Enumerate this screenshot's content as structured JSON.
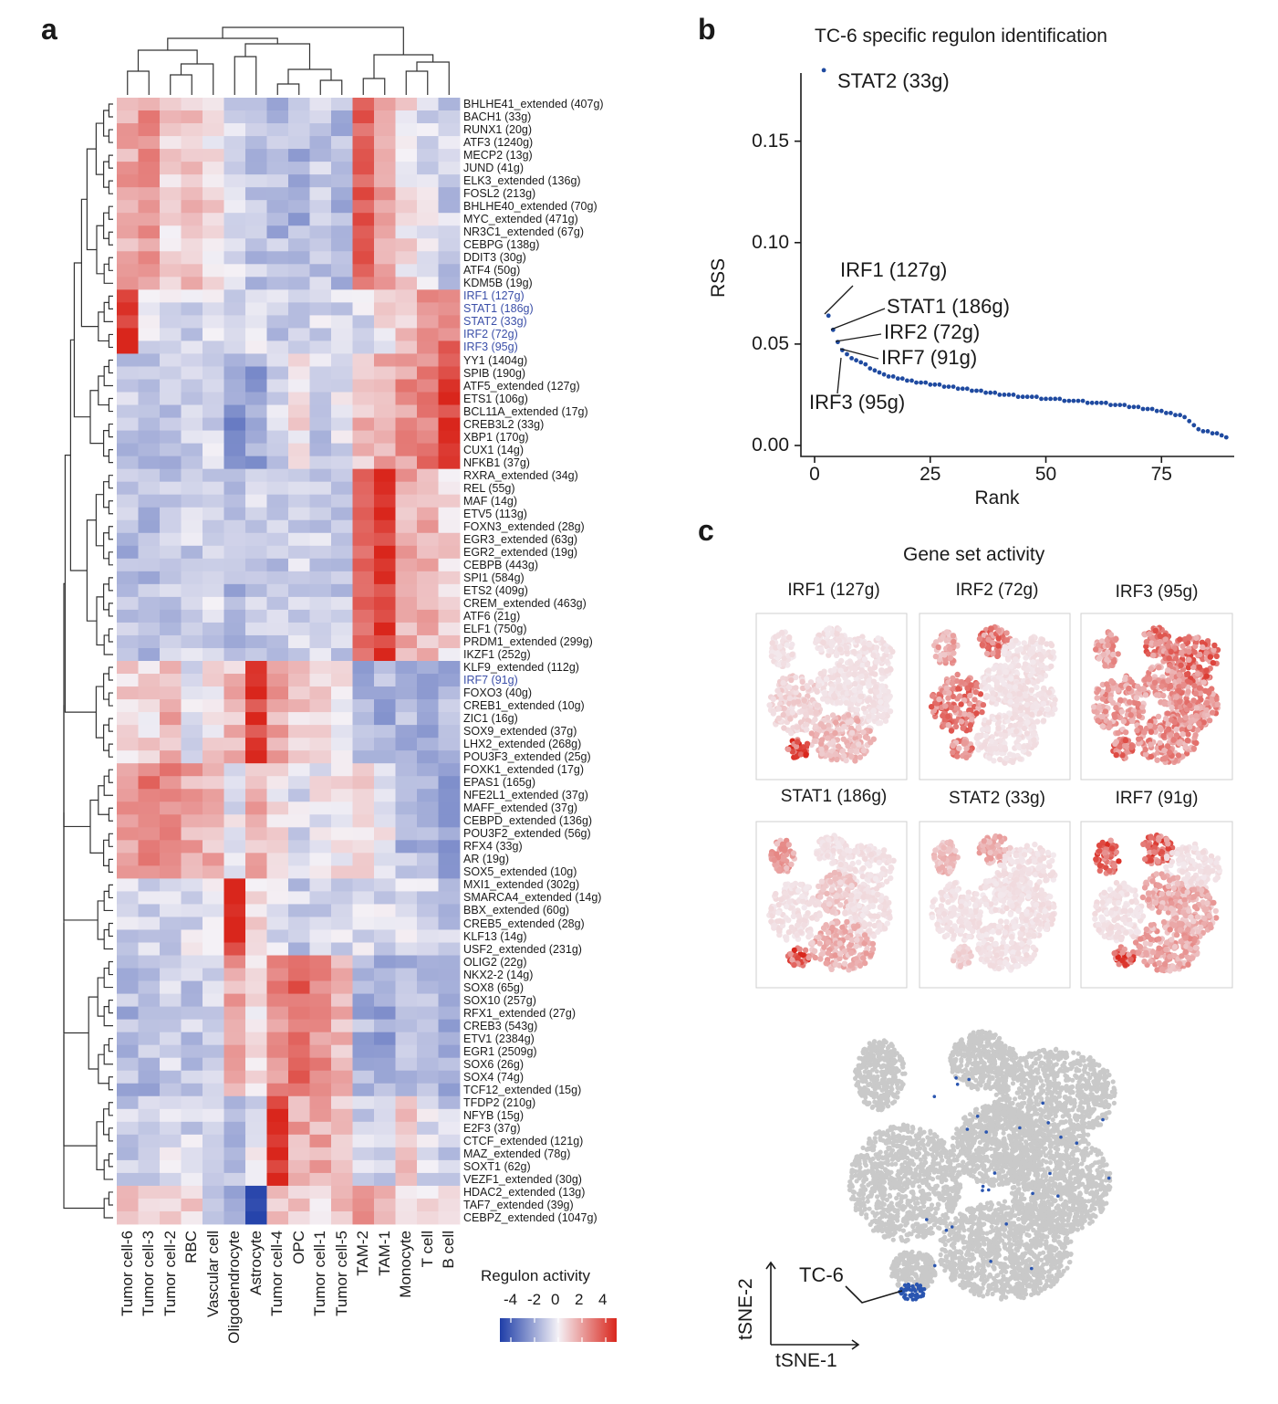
{
  "panels": {
    "a": "a",
    "b": "b",
    "c": "c"
  },
  "heatmap": {
    "columns": [
      "Tumor cell-6",
      "Tumor cell-3",
      "Tumor cell-2",
      "RBC",
      "Vascular cell",
      "Oligodendrocyte",
      "Astrocyte",
      "Tumor cell-4",
      "OPC",
      "Tumor cell-1",
      "Tumor cell-5",
      "TAM-2",
      "TAM-1",
      "Monocyte",
      "T cell",
      "B cell"
    ],
    "rows": [
      {
        "label": "BHLHE41_extended (407g)",
        "hl": false
      },
      {
        "label": "BACH1 (33g)",
        "hl": false
      },
      {
        "label": "RUNX1 (20g)",
        "hl": false
      },
      {
        "label": "ATF3 (1240g)",
        "hl": false
      },
      {
        "label": "MECP2 (13g)",
        "hl": false
      },
      {
        "label": "JUND (41g)",
        "hl": false
      },
      {
        "label": "ELK3_extended (136g)",
        "hl": false
      },
      {
        "label": "FOSL2 (213g)",
        "hl": false
      },
      {
        "label": "BHLHE40_extended (70g)",
        "hl": false
      },
      {
        "label": "MYC_extended (471g)",
        "hl": false
      },
      {
        "label": "NR3C1_extended (67g)",
        "hl": false
      },
      {
        "label": "CEBPG (138g)",
        "hl": false
      },
      {
        "label": "DDIT3 (30g)",
        "hl": false
      },
      {
        "label": "ATF4 (50g)",
        "hl": false
      },
      {
        "label": "KDM5B (19g)",
        "hl": false
      },
      {
        "label": "IRF1 (127g)",
        "hl": true
      },
      {
        "label": "STAT1 (186g)",
        "hl": true
      },
      {
        "label": "STAT2 (33g)",
        "hl": true
      },
      {
        "label": "IRF2 (72g)",
        "hl": true
      },
      {
        "label": "IRF3 (95g)",
        "hl": true
      },
      {
        "label": "YY1 (1404g)",
        "hl": false
      },
      {
        "label": "SPIB (190g)",
        "hl": false
      },
      {
        "label": "ATF5_extended (127g)",
        "hl": false
      },
      {
        "label": "ETS1 (106g)",
        "hl": false
      },
      {
        "label": "BCL11A_extended (17g)",
        "hl": false
      },
      {
        "label": "CREB3L2 (33g)",
        "hl": false
      },
      {
        "label": "XBP1 (170g)",
        "hl": false
      },
      {
        "label": "CUX1 (14g)",
        "hl": false
      },
      {
        "label": "NFKB1 (37g)",
        "hl": false
      },
      {
        "label": "RXRA_extended (34g)",
        "hl": false
      },
      {
        "label": "REL (55g)",
        "hl": false
      },
      {
        "label": "MAF (14g)",
        "hl": false
      },
      {
        "label": "ETV5 (113g)",
        "hl": false
      },
      {
        "label": "FOXN3_extended (28g)",
        "hl": false
      },
      {
        "label": "EGR3_extended (63g)",
        "hl": false
      },
      {
        "label": "EGR2_extended (19g)",
        "hl": false
      },
      {
        "label": "CEBPB (443g)",
        "hl": false
      },
      {
        "label": "SPI1 (584g)",
        "hl": false
      },
      {
        "label": "ETS2 (409g)",
        "hl": false
      },
      {
        "label": "CREM_extended (463g)",
        "hl": false
      },
      {
        "label": "ATF6 (21g)",
        "hl": false
      },
      {
        "label": "ELF1 (750g)",
        "hl": false
      },
      {
        "label": "PRDM1_extended (299g)",
        "hl": false
      },
      {
        "label": "IKZF1 (252g)",
        "hl": false
      },
      {
        "label": "KLF9_extended (112g)",
        "hl": false
      },
      {
        "label": "IRF7 (91g)",
        "hl": true
      },
      {
        "label": "FOXO3 (40g)",
        "hl": false
      },
      {
        "label": "CREB1_extended (10g)",
        "hl": false
      },
      {
        "label": "ZIC1 (16g)",
        "hl": false
      },
      {
        "label": "SOX9_extended (37g)",
        "hl": false
      },
      {
        "label": "LHX2_extended (268g)",
        "hl": false
      },
      {
        "label": "POU3F3_extended (25g)",
        "hl": false
      },
      {
        "label": "FOXK1_extended (17g)",
        "hl": false
      },
      {
        "label": "EPAS1 (165g)",
        "hl": false
      },
      {
        "label": "NFE2L1_extended (37g)",
        "hl": false
      },
      {
        "label": "MAFF_extended (37g)",
        "hl": false
      },
      {
        "label": "CEBPD_extended (136g)",
        "hl": false
      },
      {
        "label": "POU3F2_extended (56g)",
        "hl": false
      },
      {
        "label": "RFX4 (33g)",
        "hl": false
      },
      {
        "label": "AR (19g)",
        "hl": false
      },
      {
        "label": "SOX5_extended (10g)",
        "hl": false
      },
      {
        "label": "MXI1_extended (302g)",
        "hl": false
      },
      {
        "label": "SMARCA4_extended (14g)",
        "hl": false
      },
      {
        "label": "BBX_extended (60g)",
        "hl": false
      },
      {
        "label": "CREB5_extended (28g)",
        "hl": false
      },
      {
        "label": "KLF13 (14g)",
        "hl": false
      },
      {
        "label": "USF2_extended (231g)",
        "hl": false
      },
      {
        "label": "OLIG2 (22g)",
        "hl": false
      },
      {
        "label": "NKX2-2 (14g)",
        "hl": false
      },
      {
        "label": "SOX8 (65g)",
        "hl": false
      },
      {
        "label": "SOX10 (257g)",
        "hl": false
      },
      {
        "label": "RFX1_extended (27g)",
        "hl": false
      },
      {
        "label": "CREB3 (543g)",
        "hl": false
      },
      {
        "label": "ETV1 (2384g)",
        "hl": false
      },
      {
        "label": "EGR1 (2509g)",
        "hl": false
      },
      {
        "label": "SOX6 (26g)",
        "hl": false
      },
      {
        "label": "SOX4 (74g)",
        "hl": false
      },
      {
        "label": "TCF12_extended (15g)",
        "hl": false
      },
      {
        "label": "TFDP2 (210g)",
        "hl": false
      },
      {
        "label": "NFYB (15g)",
        "hl": false
      },
      {
        "label": "E2F3 (37g)",
        "hl": false
      },
      {
        "label": "CTCF_extended (121g)",
        "hl": false
      },
      {
        "label": "MAZ_extended (78g)",
        "hl": false
      },
      {
        "label": "SOXT1 (62g)",
        "hl": false
      },
      {
        "label": "VEZF1_extended (30g)",
        "hl": false
      },
      {
        "label": "HDAC2_extended (13g)",
        "hl": false
      },
      {
        "label": "TAF7_extended (39g)",
        "hl": false
      },
      {
        "label": "CEBPZ_extended (1047g)",
        "hl": false
      }
    ],
    "legend": {
      "title": "Regulon activity",
      "ticks": [
        "-4",
        "-2",
        "0",
        "2",
        "4"
      ],
      "low_color": "#1f3ea8",
      "mid_color": "#f4f1f6",
      "high_color": "#d9261c"
    },
    "highlight_color": "#3b4fa8"
  },
  "chart_data": {
    "type": "scatter",
    "title": "TC-6 specific regulon identification",
    "xlabel": "Rank",
    "ylabel": "RSS",
    "xlim": [
      0,
      88
    ],
    "ylim": [
      0,
      0.18
    ],
    "xticks": [
      "0",
      "25",
      "50",
      "75"
    ],
    "yticks": [
      "0.00",
      "0.05",
      "0.10",
      "0.15"
    ],
    "point_color": "#1f4aa0",
    "y": [
      0.185,
      0.064,
      0.057,
      0.051,
      0.047,
      0.045,
      0.043,
      0.042,
      0.041,
      0.04,
      0.038,
      0.037,
      0.036,
      0.035,
      0.034,
      0.034,
      0.033,
      0.033,
      0.032,
      0.032,
      0.031,
      0.031,
      0.031,
      0.03,
      0.03,
      0.03,
      0.029,
      0.029,
      0.029,
      0.028,
      0.028,
      0.028,
      0.027,
      0.027,
      0.027,
      0.026,
      0.026,
      0.026,
      0.025,
      0.025,
      0.025,
      0.025,
      0.024,
      0.024,
      0.024,
      0.024,
      0.024,
      0.023,
      0.023,
      0.023,
      0.023,
      0.023,
      0.022,
      0.022,
      0.022,
      0.022,
      0.022,
      0.021,
      0.021,
      0.021,
      0.021,
      0.021,
      0.02,
      0.02,
      0.02,
      0.02,
      0.019,
      0.019,
      0.019,
      0.018,
      0.018,
      0.018,
      0.017,
      0.017,
      0.016,
      0.016,
      0.015,
      0.015,
      0.014,
      0.012,
      0.01,
      0.008,
      0.007,
      0.007,
      0.006,
      0.006,
      0.005,
      0.004
    ],
    "annotations": [
      {
        "label": "STAT2 (33g)",
        "rank": 1
      },
      {
        "label": "IRF1 (127g)",
        "rank": 2
      },
      {
        "label": "STAT1 (186g)",
        "rank": 3
      },
      {
        "label": "IRF2 (72g)",
        "rank": 4
      },
      {
        "label": "IRF7 (91g)",
        "rank": 5
      },
      {
        "label": "IRF3 (95g)",
        "rank": 6
      }
    ]
  },
  "tsne": {
    "title": "Gene set activity",
    "panels": [
      "IRF1 (127g)",
      "IRF2 (72g)",
      "IRF3 (95g)",
      "STAT1 (186g)",
      "STAT2 (33g)",
      "IRF7 (91g)"
    ],
    "cluster_label": "TC-6",
    "xaxis": "tSNE-1",
    "yaxis": "tSNE-2",
    "gray_color": "#c9c9c9",
    "highlight_color": "#2a55b0"
  }
}
